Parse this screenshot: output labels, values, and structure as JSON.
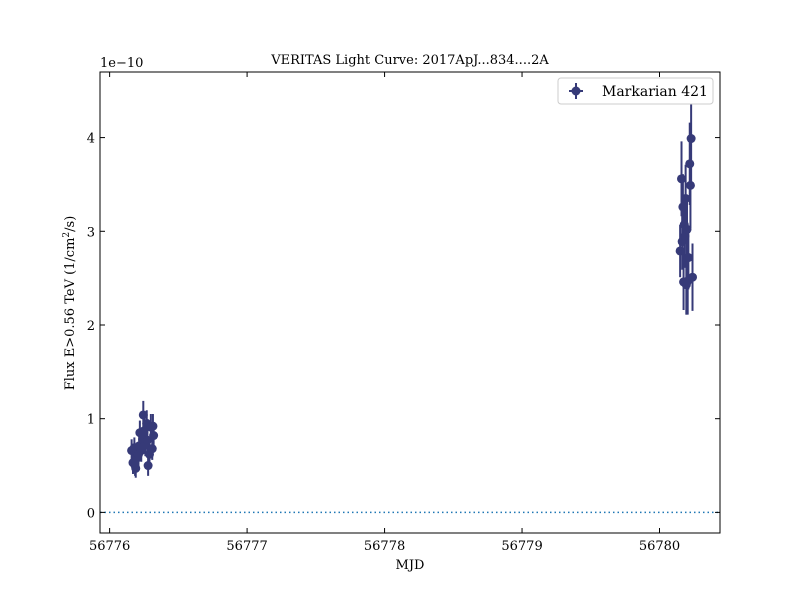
{
  "chart_data": {
    "type": "scatter",
    "title": "VERITAS Light Curve: 2017ApJ...834....2A",
    "xlabel": "MJD",
    "ylabel_main": "Flux E>0.56 TeV (1/cm",
    "ylabel_sup": "2",
    "ylabel_tail": "/s)",
    "y_offset_label": "1e−10",
    "y_scale": 1e-10,
    "xlim": [
      56775.93,
      56780.44
    ],
    "ylim": [
      -0.22,
      4.7
    ],
    "x_ticks": [
      56776,
      56777,
      56778,
      56779,
      56780
    ],
    "x_tick_labels": [
      "56776",
      "56777",
      "56778",
      "56779",
      "56780"
    ],
    "y_ticks": [
      0,
      1,
      2,
      3,
      4
    ],
    "y_tick_labels": [
      "0",
      "1",
      "2",
      "3",
      "4"
    ],
    "grid": false,
    "zero_line": {
      "y": 0,
      "style": "dotted",
      "color": "#1f77b4"
    },
    "legend": {
      "placement": "top-right"
    },
    "series": [
      {
        "name": "Markarian 421",
        "color": "#363a78",
        "points": [
          {
            "x": 56776.16,
            "y": 0.66,
            "err": 0.12
          },
          {
            "x": 56776.17,
            "y": 0.53,
            "err": 0.12
          },
          {
            "x": 56776.18,
            "y": 0.69,
            "err": 0.11
          },
          {
            "x": 56776.185,
            "y": 0.5,
            "err": 0.11
          },
          {
            "x": 56776.19,
            "y": 0.47,
            "err": 0.1
          },
          {
            "x": 56776.2,
            "y": 0.58,
            "err": 0.1
          },
          {
            "x": 56776.21,
            "y": 0.62,
            "err": 0.11
          },
          {
            "x": 56776.215,
            "y": 0.71,
            "err": 0.12
          },
          {
            "x": 56776.22,
            "y": 0.85,
            "err": 0.13
          },
          {
            "x": 56776.23,
            "y": 0.66,
            "err": 0.12
          },
          {
            "x": 56776.24,
            "y": 0.78,
            "err": 0.13
          },
          {
            "x": 56776.245,
            "y": 1.04,
            "err": 0.15
          },
          {
            "x": 56776.25,
            "y": 0.87,
            "err": 0.13
          },
          {
            "x": 56776.26,
            "y": 0.72,
            "err": 0.12
          },
          {
            "x": 56776.27,
            "y": 0.95,
            "err": 0.14
          },
          {
            "x": 56776.275,
            "y": 0.77,
            "err": 0.12
          },
          {
            "x": 56776.28,
            "y": 0.5,
            "err": 0.11
          },
          {
            "x": 56776.29,
            "y": 0.62,
            "err": 0.12
          },
          {
            "x": 56776.3,
            "y": 0.91,
            "err": 0.14
          },
          {
            "x": 56776.31,
            "y": 0.68,
            "err": 0.12
          },
          {
            "x": 56776.315,
            "y": 0.92,
            "err": 0.13
          },
          {
            "x": 56776.32,
            "y": 0.82,
            "err": 0.13
          },
          {
            "x": 56780.15,
            "y": 2.79,
            "err": 0.28
          },
          {
            "x": 56780.16,
            "y": 3.56,
            "err": 0.4
          },
          {
            "x": 56780.165,
            "y": 2.89,
            "err": 0.3
          },
          {
            "x": 56780.17,
            "y": 3.26,
            "err": 0.35
          },
          {
            "x": 56780.175,
            "y": 2.46,
            "err": 0.3
          },
          {
            "x": 56780.18,
            "y": 3.07,
            "err": 0.32
          },
          {
            "x": 56780.185,
            "y": 2.95,
            "err": 0.34
          },
          {
            "x": 56780.19,
            "y": 3.35,
            "err": 0.36
          },
          {
            "x": 56780.195,
            "y": 2.43,
            "err": 0.32
          },
          {
            "x": 56780.2,
            "y": 3.02,
            "err": 0.33
          },
          {
            "x": 56780.205,
            "y": 2.47,
            "err": 0.36
          },
          {
            "x": 56780.21,
            "y": 2.72,
            "err": 0.34
          },
          {
            "x": 56780.22,
            "y": 3.72,
            "err": 0.44
          },
          {
            "x": 56780.225,
            "y": 3.49,
            "err": 0.46
          },
          {
            "x": 56780.23,
            "y": 3.99,
            "err": 0.48
          },
          {
            "x": 56780.24,
            "y": 2.51,
            "err": 0.36
          }
        ]
      }
    ]
  }
}
